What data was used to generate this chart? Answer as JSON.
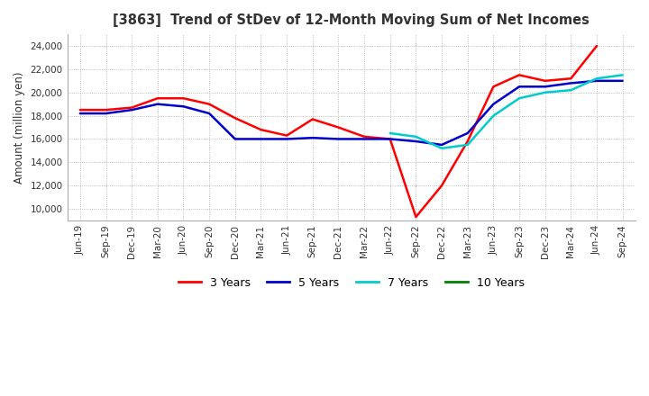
{
  "title": "[3863]  Trend of StDev of 12-Month Moving Sum of Net Incomes",
  "ylabel": "Amount (million yen)",
  "ylim": [
    9000,
    25000
  ],
  "yticks": [
    10000,
    12000,
    14000,
    16000,
    18000,
    20000,
    22000,
    24000
  ],
  "legend": [
    "3 Years",
    "5 Years",
    "7 Years",
    "10 Years"
  ],
  "legend_colors": [
    "#ff0000",
    "#0000cc",
    "#00cccc",
    "#008000"
  ],
  "x_labels": [
    "Jun-19",
    "Sep-19",
    "Dec-19",
    "Mar-20",
    "Jun-20",
    "Sep-20",
    "Dec-20",
    "Mar-21",
    "Jun-21",
    "Sep-21",
    "Dec-21",
    "Mar-22",
    "Jun-22",
    "Sep-22",
    "Dec-22",
    "Mar-23",
    "Jun-23",
    "Sep-23",
    "Dec-23",
    "Mar-24",
    "Jun-24",
    "Sep-24"
  ],
  "series_3y": [
    18500,
    18500,
    18700,
    19500,
    19500,
    19000,
    17800,
    16800,
    16300,
    17700,
    17000,
    16200,
    16000,
    9300,
    12000,
    15800,
    20500,
    21500,
    21000,
    21200,
    24000,
    null
  ],
  "series_5y": [
    18200,
    18200,
    18500,
    19000,
    18800,
    18200,
    16000,
    16000,
    16000,
    16100,
    16000,
    16000,
    16000,
    15800,
    15500,
    16500,
    19000,
    20500,
    20500,
    20800,
    21000,
    21000
  ],
  "series_7y": [
    null,
    null,
    null,
    null,
    null,
    null,
    null,
    null,
    null,
    null,
    null,
    null,
    16500,
    16200,
    15200,
    15500,
    18000,
    19500,
    20000,
    20200,
    21200,
    21500
  ],
  "series_10y": [
    null,
    null,
    null,
    null,
    null,
    null,
    null,
    null,
    null,
    null,
    null,
    null,
    null,
    null,
    null,
    null,
    null,
    null,
    null,
    null,
    null,
    null
  ],
  "background_color": "#ffffff",
  "grid_color": "#aaaaaa"
}
